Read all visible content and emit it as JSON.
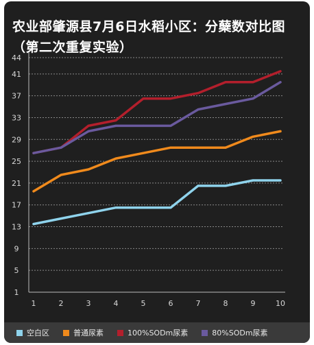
{
  "chart_data": {
    "type": "line",
    "title": "农业部肇源县7月6日水稻小区：分蘖数对比图（第二次重复实验）",
    "x": [
      1,
      2,
      3,
      4,
      5,
      6,
      7,
      8,
      9,
      10
    ],
    "ylim": [
      1,
      44
    ],
    "yticks": [
      1,
      5,
      9,
      13,
      17,
      21,
      25,
      29,
      33,
      37,
      41,
      44
    ],
    "grid": true,
    "legend_position": "bottom",
    "series": [
      {
        "name": "空白区",
        "color": "#8fd3ec",
        "values": [
          13.5,
          14.5,
          15.5,
          16.5,
          16.5,
          16.5,
          20.5,
          20.5,
          21.5,
          21.5
        ]
      },
      {
        "name": "普通尿素",
        "color": "#f08a1c",
        "values": [
          19.5,
          22.5,
          23.5,
          25.5,
          26.5,
          27.5,
          27.5,
          27.5,
          29.5,
          30.5
        ]
      },
      {
        "name": "100%SODm尿素",
        "color": "#b31f2c",
        "values": [
          26.5,
          27.5,
          31.5,
          32.5,
          36.5,
          36.5,
          37.5,
          39.5,
          39.5,
          41.5
        ]
      },
      {
        "name": "80%SODm尿素",
        "color": "#6a5a9e",
        "values": [
          26.5,
          27.5,
          30.5,
          31.5,
          31.5,
          31.5,
          34.5,
          35.5,
          36.5,
          39.5
        ]
      }
    ]
  }
}
